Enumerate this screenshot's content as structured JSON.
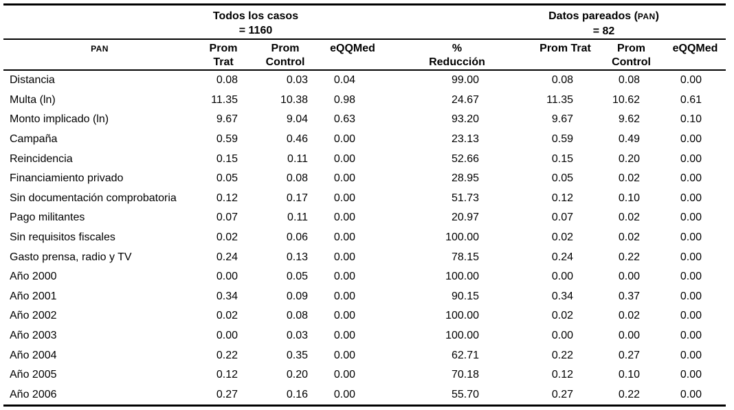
{
  "page": {
    "background_color": "#ffffff",
    "text_color": "#000000",
    "rule_color": "#000000"
  },
  "table": {
    "row_header_label": "PAN",
    "groups": {
      "all_cases": {
        "title": "Todos los casos",
        "count_line": "= 1160"
      },
      "matched": {
        "prefix": "Datos pareados (",
        "acronym": "PAN",
        "suffix": ")",
        "count_line": "= 82"
      }
    },
    "columns": [
      {
        "line1": "Prom Trat",
        "line2": ""
      },
      {
        "line1": "Prom",
        "line2": "Control"
      },
      {
        "line1": "eQQMed",
        "line2": ""
      },
      {
        "line1": "%",
        "line2": "Reducción"
      },
      {
        "line1": "Prom Trat",
        "line2": ""
      },
      {
        "line1": "Prom",
        "line2": "Control"
      },
      {
        "line1": "eQQMed",
        "line2": ""
      }
    ],
    "rows": [
      {
        "label": "Distancia",
        "values": [
          "0.08",
          "0.03",
          "0.04",
          "99.00",
          "0.08",
          "0.08",
          "0.00"
        ]
      },
      {
        "label": "Multa (ln)",
        "values": [
          "11.35",
          "10.38",
          "0.98",
          "24.67",
          "11.35",
          "10.62",
          "0.61"
        ]
      },
      {
        "label": "Monto implicado (ln)",
        "values": [
          "9.67",
          "9.04",
          "0.63",
          "93.20",
          "9.67",
          "9.62",
          "0.10"
        ]
      },
      {
        "label": "Campaña",
        "values": [
          "0.59",
          "0.46",
          "0.00",
          "23.13",
          "0.59",
          "0.49",
          "0.00"
        ]
      },
      {
        "label": "Reincidencia",
        "values": [
          "0.15",
          "0.11",
          "0.00",
          "52.66",
          "0.15",
          "0.20",
          "0.00"
        ]
      },
      {
        "label": "Financiamiento privado",
        "values": [
          "0.05",
          "0.08",
          "0.00",
          "28.95",
          "0.05",
          "0.02",
          "0.00"
        ]
      },
      {
        "label": "Sin documentación comprobatoria",
        "values": [
          "0.12",
          "0.17",
          "0.00",
          "51.73",
          "0.12",
          "0.10",
          "0.00"
        ]
      },
      {
        "label": "Pago militantes",
        "values": [
          "0.07",
          "0.11",
          "0.00",
          "20.97",
          "0.07",
          "0.02",
          "0.00"
        ]
      },
      {
        "label": "Sin requisitos fiscales",
        "values": [
          "0.02",
          "0.06",
          "0.00",
          "100.00",
          "0.02",
          "0.02",
          "0.00"
        ]
      },
      {
        "label": "Gasto prensa, radio y TV",
        "values": [
          "0.24",
          "0.13",
          "0.00",
          "78.15",
          "0.24",
          "0.22",
          "0.00"
        ]
      },
      {
        "label": "Año 2000",
        "values": [
          "0.00",
          "0.05",
          "0.00",
          "100.00",
          "0.00",
          "0.00",
          "0.00"
        ]
      },
      {
        "label": "Año 2001",
        "values": [
          "0.34",
          "0.09",
          "0.00",
          "90.15",
          "0.34",
          "0.37",
          "0.00"
        ]
      },
      {
        "label": "Año 2002",
        "values": [
          "0.02",
          "0.08",
          "0.00",
          "100.00",
          "0.02",
          "0.02",
          "0.00"
        ]
      },
      {
        "label": "Año 2003",
        "values": [
          "0.00",
          "0.03",
          "0.00",
          "100.00",
          "0.00",
          "0.00",
          "0.00"
        ]
      },
      {
        "label": "Año 2004",
        "values": [
          "0.22",
          "0.35",
          "0.00",
          "62.71",
          "0.22",
          "0.27",
          "0.00"
        ]
      },
      {
        "label": "Año 2005",
        "values": [
          "0.12",
          "0.20",
          "0.00",
          "70.18",
          "0.12",
          "0.10",
          "0.00"
        ]
      },
      {
        "label": "Año 2006",
        "values": [
          "0.27",
          "0.16",
          "0.00",
          "55.70",
          "0.27",
          "0.22",
          "0.00"
        ]
      }
    ]
  }
}
